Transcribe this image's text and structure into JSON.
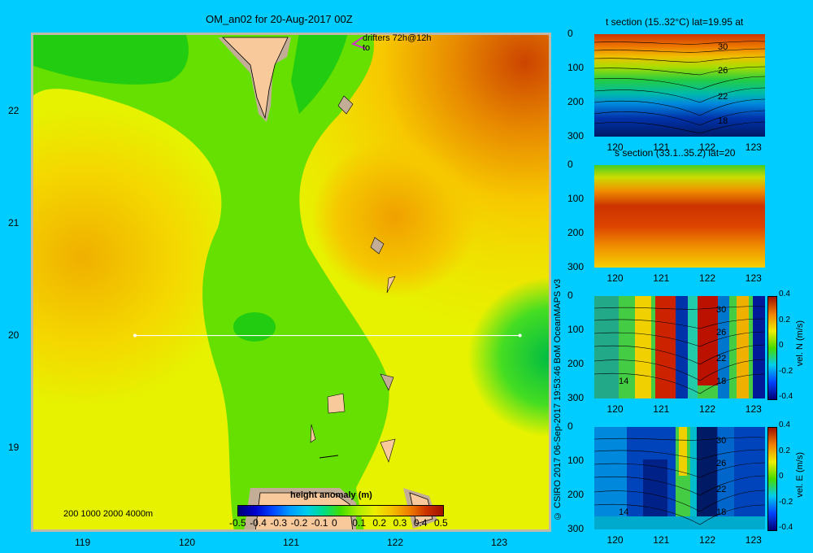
{
  "main_title": "OM_an02 for 20-Aug-2017 00Z",
  "drifters": {
    "line1": "drifters 72h@12h",
    "line2": "to"
  },
  "depth_legend": "200  1000  2000  4000m",
  "colorbar": {
    "label": "height anomaly (m)",
    "ticks": [
      "-0.5",
      "-0.4",
      "-0.3",
      "-0.2",
      "-0.1",
      "0",
      "0.1",
      "0.2",
      "0.3",
      "0.4",
      "0.5"
    ]
  },
  "copyright": "© CSIRO 2017   06-Sep-2017 19:53:46 BoM OceanMAPS v3",
  "colors": {
    "background": "#00ccff",
    "land": "#f8c99a",
    "shelf": "#c4ad96",
    "section_line": "#ffffff",
    "drifter": "#cc33cc"
  },
  "chart_data": [
    {
      "type": "heatmap",
      "name": "height anomaly map",
      "title": "OM_an02 for 20-Aug-2017 00Z",
      "x_ticks": [
        "119",
        "120",
        "121",
        "122",
        "123"
      ],
      "y_ticks": [
        "19",
        "20",
        "21",
        "22"
      ],
      "xlim": [
        118.5,
        123.5
      ],
      "ylim": [
        18.25,
        22.7
      ],
      "section_line": {
        "lon": [
          119.5,
          123.2
        ],
        "lat": [
          20,
          20
        ]
      },
      "colorbar_range": [
        -0.5,
        0.5
      ],
      "colorbar_label": "height anomaly (m)",
      "field": [
        {
          "lon": 118.8,
          "lat": 22.4,
          "value": 0.05
        },
        {
          "lon": 119.5,
          "lat": 22.3,
          "value": 0.05
        },
        {
          "lon": 121.5,
          "lat": 22.5,
          "value": 0.05
        },
        {
          "lon": 122.9,
          "lat": 22.3,
          "value": 0.42
        },
        {
          "lon": 122.6,
          "lat": 21.8,
          "value": 0.33
        },
        {
          "lon": 122.2,
          "lat": 21.2,
          "value": 0.25
        },
        {
          "lon": 121.7,
          "lat": 21.0,
          "value": 0.28
        },
        {
          "lon": 118.9,
          "lat": 21.0,
          "value": 0.26
        },
        {
          "lon": 119.4,
          "lat": 21.4,
          "value": 0.2
        },
        {
          "lon": 120.7,
          "lat": 20.3,
          "value": 0.08
        },
        {
          "lon": 121.1,
          "lat": 20.0,
          "value": 0.02
        },
        {
          "lon": 123.3,
          "lat": 19.9,
          "value": 0.02
        },
        {
          "lon": 122.8,
          "lat": 20.2,
          "value": 0.1
        },
        {
          "lon": 119.8,
          "lat": 19.0,
          "value": 0.18
        },
        {
          "lon": 122.9,
          "lat": 18.9,
          "value": 0.15
        },
        {
          "lon": 122.0,
          "lat": 19.2,
          "value": 0.12
        }
      ]
    },
    {
      "type": "heatmap",
      "name": "temperature section",
      "title": "t section (15..32°C) lat=19.95 at",
      "x_ticks": [
        "120",
        "121",
        "122",
        "123"
      ],
      "y_ticks": [
        "0",
        "100",
        "200",
        "300"
      ],
      "xlim": [
        119.55,
        123.25
      ],
      "ylim": [
        300,
        0
      ],
      "contour_labels": [
        "30",
        "26",
        "22",
        "18"
      ]
    },
    {
      "type": "heatmap",
      "name": "salinity section",
      "title": "s section (33.1..35.2) lat=20",
      "x_ticks": [
        "120",
        "121",
        "122",
        "123"
      ],
      "y_ticks": [
        "0",
        "100",
        "200",
        "300"
      ],
      "xlim": [
        119.55,
        123.25
      ],
      "ylim": [
        300,
        0
      ]
    },
    {
      "type": "heatmap",
      "name": "northward velocity section",
      "x_ticks": [
        "120",
        "121",
        "122",
        "123"
      ],
      "y_ticks": [
        "0",
        "100",
        "200",
        "300"
      ],
      "xlim": [
        119.55,
        123.25
      ],
      "ylim": [
        300,
        0
      ],
      "colorbar_label": "vel. N (m/s)",
      "colorbar_ticks": [
        "0.4",
        "0.2",
        "0",
        "-0.2",
        "-0.4"
      ],
      "contour_labels": [
        "30",
        "26",
        "22",
        "18",
        "14"
      ]
    },
    {
      "type": "heatmap",
      "name": "eastward velocity section",
      "x_ticks": [
        "120",
        "121",
        "122",
        "123"
      ],
      "y_ticks": [
        "0",
        "100",
        "200",
        "300"
      ],
      "xlim": [
        119.55,
        123.25
      ],
      "ylim": [
        300,
        0
      ],
      "colorbar_label": "vel. E (m/s)",
      "colorbar_ticks": [
        "0.4",
        "0.2",
        "0",
        "-0.2",
        "-0.4"
      ],
      "contour_labels": [
        "30",
        "26",
        "22",
        "18",
        "14"
      ]
    }
  ]
}
